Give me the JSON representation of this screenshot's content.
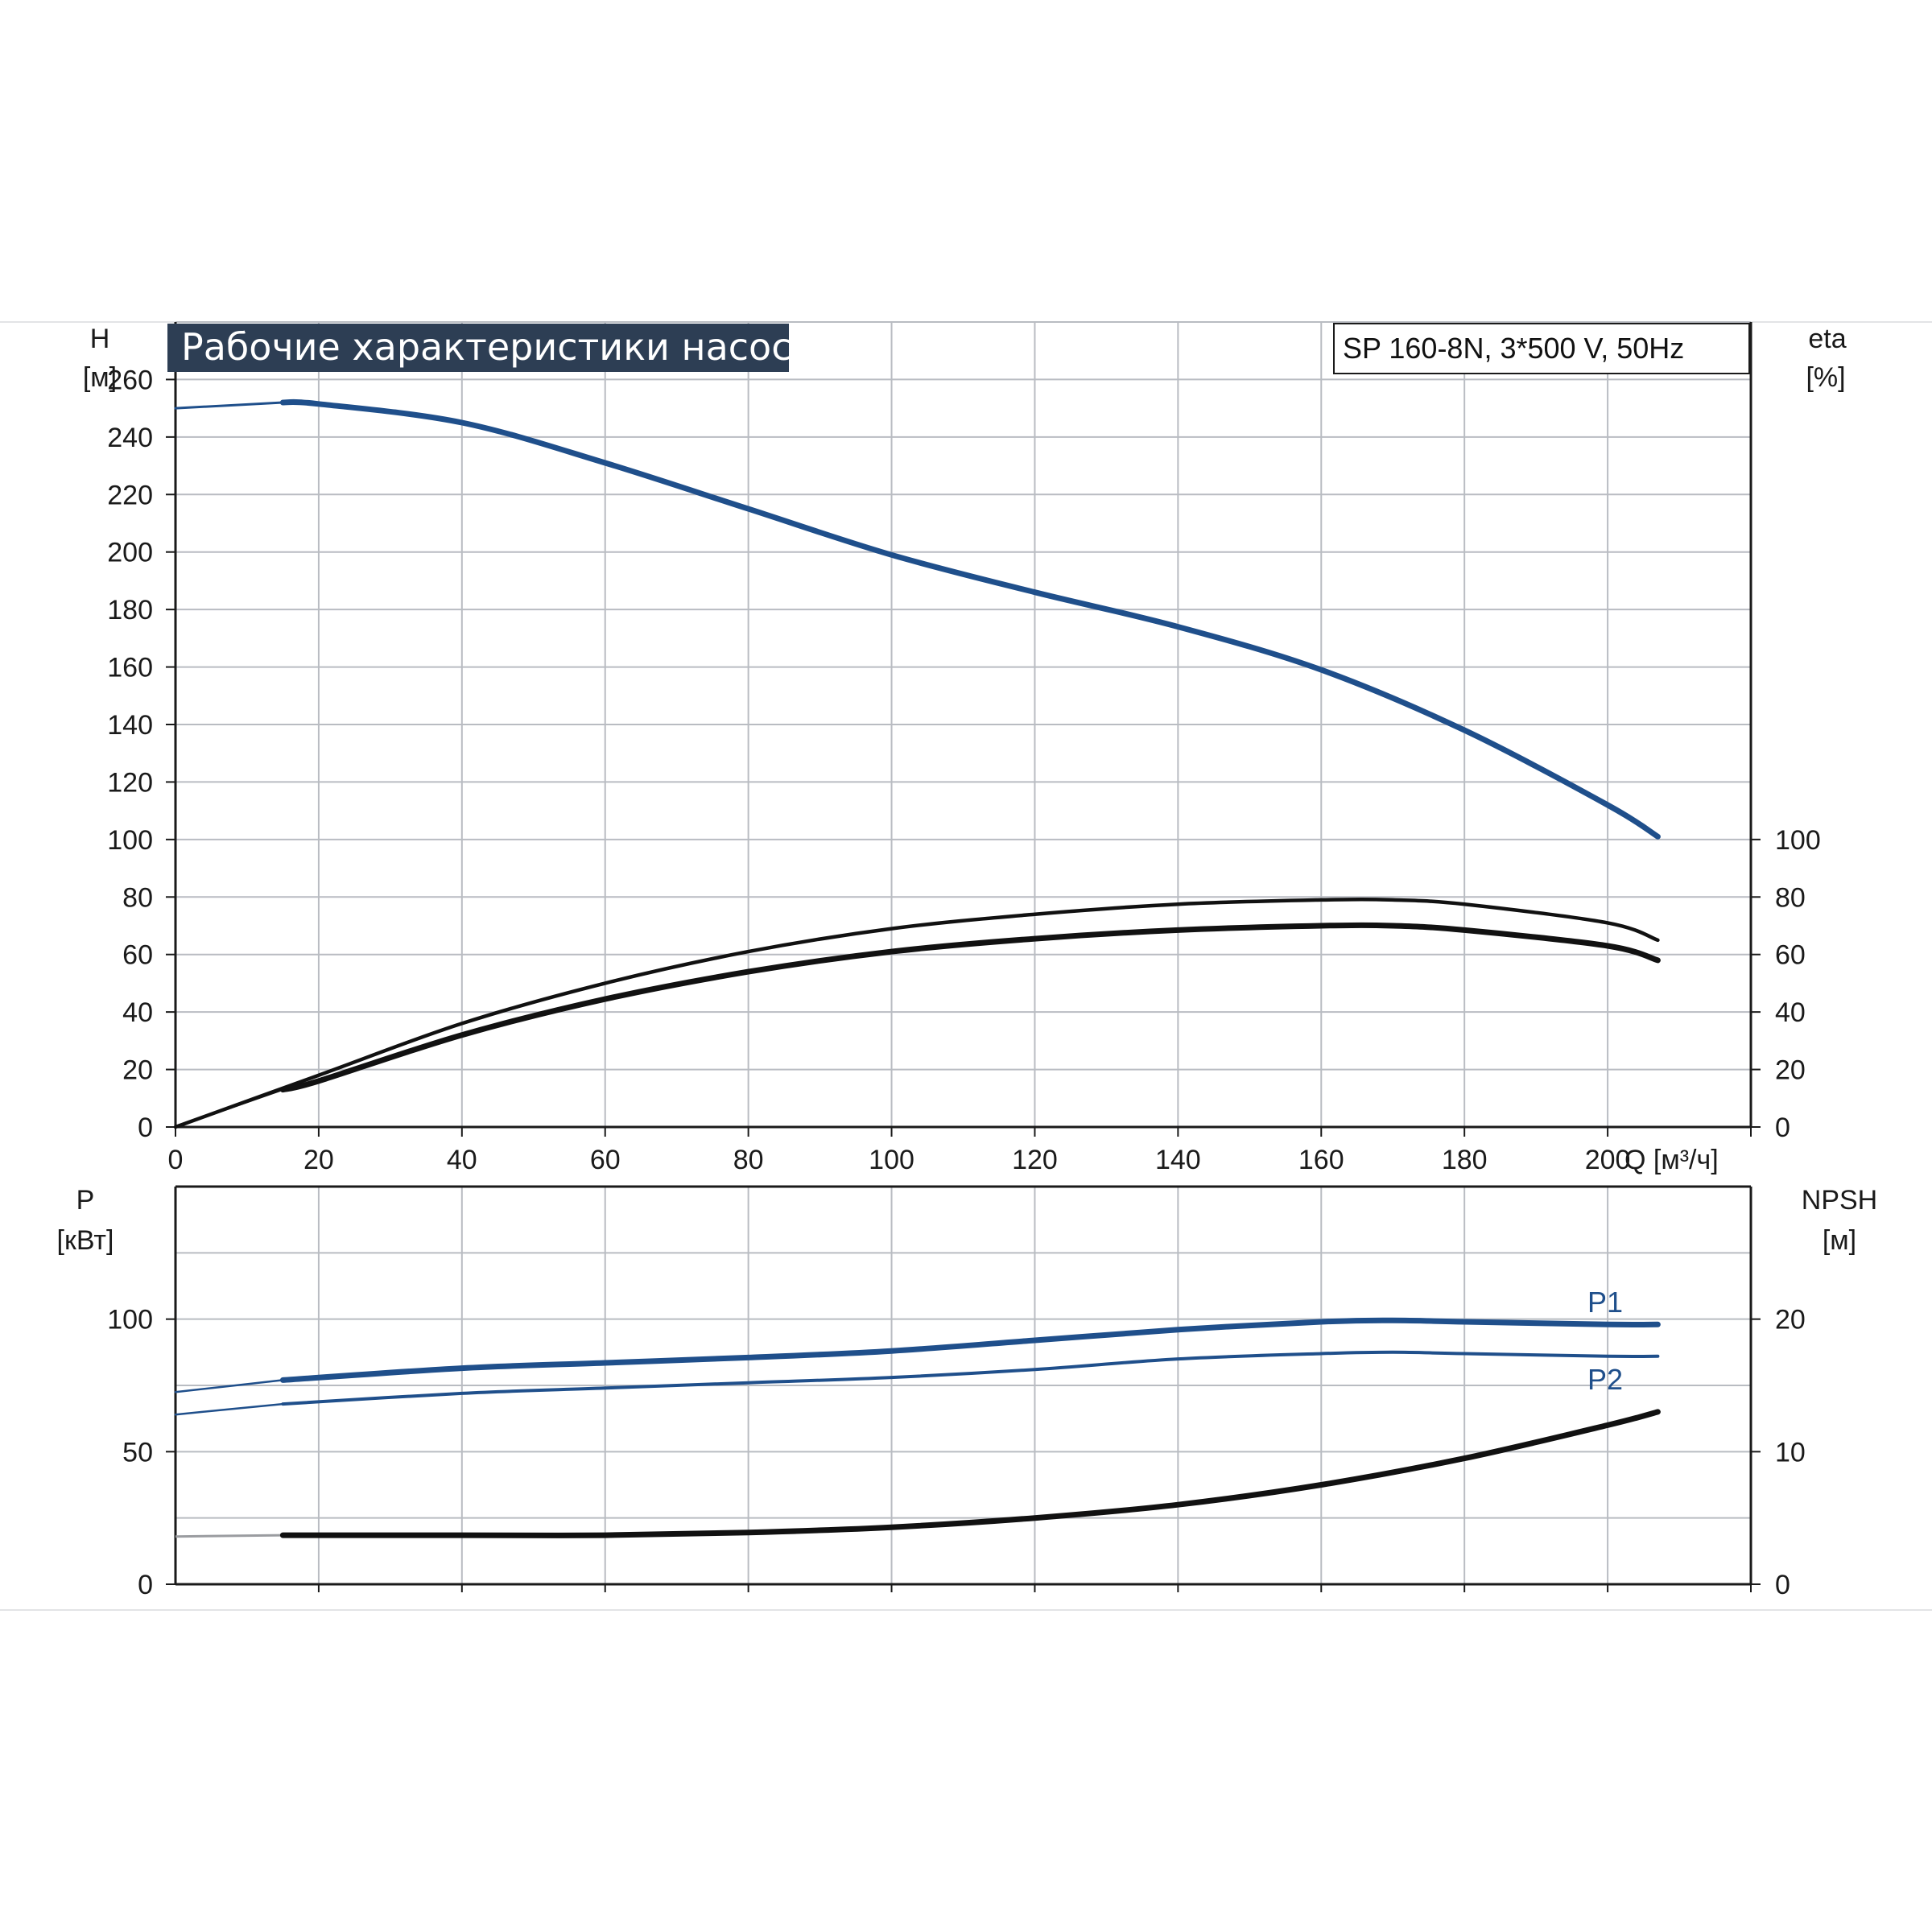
{
  "colors": {
    "blue": "#1f4f8b",
    "black": "#111111",
    "grid": "#b9bcc2",
    "title_bg": "#2d3e54"
  },
  "title": "Рабочие характеристики насоса",
  "model": "SP 160-8N, 3*500 V, 50Hz",
  "chart_data": [
    {
      "type": "line",
      "panel": "top",
      "xlabel": "Q [м³/ч]",
      "ylabel_left": [
        "H",
        "[м]"
      ],
      "ylabel_right": [
        "eta",
        "[%]"
      ],
      "xlim": [
        0,
        220
      ],
      "x_ticks": [
        0,
        20,
        40,
        60,
        80,
        100,
        120,
        140,
        160,
        180,
        200
      ],
      "ylim_left": [
        0,
        280
      ],
      "y_ticks_left": [
        0,
        20,
        40,
        60,
        80,
        100,
        120,
        140,
        160,
        180,
        200,
        220,
        240,
        260
      ],
      "y_ticks_right": [
        0,
        20,
        40,
        60,
        80,
        100
      ],
      "grid": true,
      "series": [
        {
          "axis": "left",
          "color": "#1f4f8b",
          "points": [
            [
              0,
              250
            ],
            [
              15,
              252
            ],
            [
              20,
              251.5
            ],
            [
              40,
              245
            ],
            [
              60,
              231
            ],
            [
              80,
              215
            ],
            [
              100,
              199
            ],
            [
              120,
              186
            ],
            [
              140,
              174
            ],
            [
              160,
              159
            ],
            [
              180,
              138
            ],
            [
              200,
              112
            ],
            [
              207,
              101
            ]
          ]
        },
        {
          "axis": "right",
          "color": "#111111",
          "points": [
            [
              0,
              0
            ],
            [
              20,
              18
            ],
            [
              40,
              36
            ],
            [
              60,
              50
            ],
            [
              80,
              61
            ],
            [
              100,
              69
            ],
            [
              120,
              74
            ],
            [
              140,
              77.5
            ],
            [
              160,
              79
            ],
            [
              170,
              79
            ],
            [
              180,
              77.5
            ],
            [
              200,
              71
            ],
            [
              207,
              65
            ]
          ]
        },
        {
          "axis": "right",
          "color": "#111111",
          "points": [
            [
              0,
              0
            ],
            [
              15,
              13
            ],
            [
              20,
              16
            ],
            [
              40,
              32
            ],
            [
              60,
              44.5
            ],
            [
              80,
              54
            ],
            [
              100,
              61
            ],
            [
              120,
              65.5
            ],
            [
              140,
              68.5
            ],
            [
              160,
              70
            ],
            [
              170,
              70
            ],
            [
              180,
              68.5
            ],
            [
              200,
              63
            ],
            [
              207,
              58
            ]
          ]
        }
      ]
    },
    {
      "type": "line",
      "panel": "bottom",
      "ylabel_left": [
        "P",
        "[кВт]"
      ],
      "ylabel_right": [
        "NPSH",
        "[м]"
      ],
      "xlim": [
        0,
        220
      ],
      "ylim_left": [
        0,
        150
      ],
      "y_ticks_left": [
        0,
        50,
        100
      ],
      "ylim_right": [
        0,
        30
      ],
      "y_ticks_right": [
        0,
        10,
        20
      ],
      "grid": true,
      "series": [
        {
          "name": "P1",
          "axis": "left",
          "color": "#1f4f8b",
          "points": [
            [
              0,
              72.5
            ],
            [
              15,
              77
            ],
            [
              40,
              81.5
            ],
            [
              60,
              83.5
            ],
            [
              80,
              85.5
            ],
            [
              100,
              88
            ],
            [
              120,
              92
            ],
            [
              140,
              96
            ],
            [
              160,
              99
            ],
            [
              170,
              99.5
            ],
            [
              180,
              99
            ],
            [
              200,
              98
            ],
            [
              207,
              98
            ]
          ]
        },
        {
          "name": "P2",
          "axis": "left",
          "color": "#1f4f8b",
          "points": [
            [
              0,
              64
            ],
            [
              15,
              68
            ],
            [
              40,
              72
            ],
            [
              60,
              74
            ],
            [
              80,
              76
            ],
            [
              100,
              78
            ],
            [
              120,
              81
            ],
            [
              140,
              85
            ],
            [
              160,
              87
            ],
            [
              170,
              87.5
            ],
            [
              180,
              87
            ],
            [
              200,
              86
            ],
            [
              207,
              86
            ]
          ]
        },
        {
          "axis": "right",
          "color": "#111111",
          "points": [
            [
              0,
              3.6
            ],
            [
              15,
              3.7
            ],
            [
              40,
              3.7
            ],
            [
              60,
              3.7
            ],
            [
              80,
              3.9
            ],
            [
              100,
              4.3
            ],
            [
              120,
              5
            ],
            [
              140,
              6
            ],
            [
              160,
              7.5
            ],
            [
              180,
              9.5
            ],
            [
              200,
              12
            ],
            [
              207,
              13
            ]
          ]
        }
      ]
    }
  ]
}
